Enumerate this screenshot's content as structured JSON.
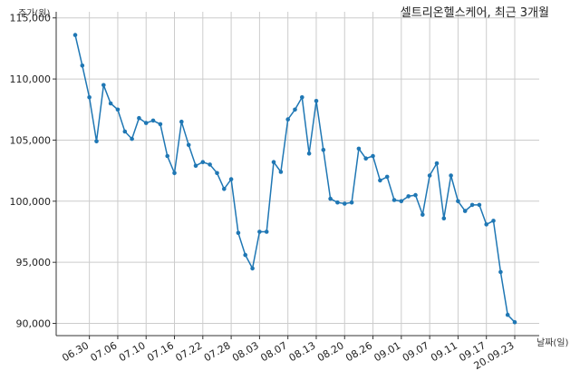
{
  "chart_data": {
    "type": "line",
    "title": "셀트리온헬스케어, 최근 3개월",
    "xlabel": "날짜(일)",
    "ylabel": "주가(원)",
    "ylim": [
      89000,
      115500
    ],
    "yticks": [
      "90,000",
      "95,000",
      "100,000",
      "105,000",
      "110,000",
      "115,000"
    ],
    "ytick_values": [
      90000,
      95000,
      100000,
      105000,
      110000,
      115000
    ],
    "xtick_labels": [
      "06.30",
      "07.06",
      "07.10",
      "07.16",
      "07.22",
      "07.28",
      "08.03",
      "08.07",
      "08.13",
      "08.20",
      "08.26",
      "09.01",
      "09.07",
      "09.11",
      "09.17",
      "20.09.23"
    ],
    "xtick_indices": [
      2,
      6,
      10,
      14,
      18,
      22,
      26,
      30,
      34,
      38,
      42,
      46,
      50,
      54,
      58,
      62
    ],
    "grid": true,
    "line_color": "#1f77b4",
    "series": [
      {
        "values": [
          113600,
          111100,
          108500,
          104900,
          109500,
          108000,
          107500,
          105700,
          105100,
          106800,
          106400,
          106600,
          106300,
          103700,
          102300,
          106500,
          104600,
          102900,
          103200,
          103000,
          102300,
          101000,
          101800,
          97400,
          95600,
          94500,
          97500,
          97500,
          103200,
          102400,
          106700,
          107500,
          108500,
          103900,
          108200,
          104200,
          100200,
          99900,
          99800,
          99900,
          104300,
          103500,
          103700,
          101700,
          102000,
          100100,
          100000,
          100400,
          100500,
          98900,
          102100,
          103100,
          98600,
          102100,
          100000,
          99200,
          99700,
          99700,
          98100,
          98400,
          94200,
          90700,
          90100
        ]
      }
    ]
  }
}
